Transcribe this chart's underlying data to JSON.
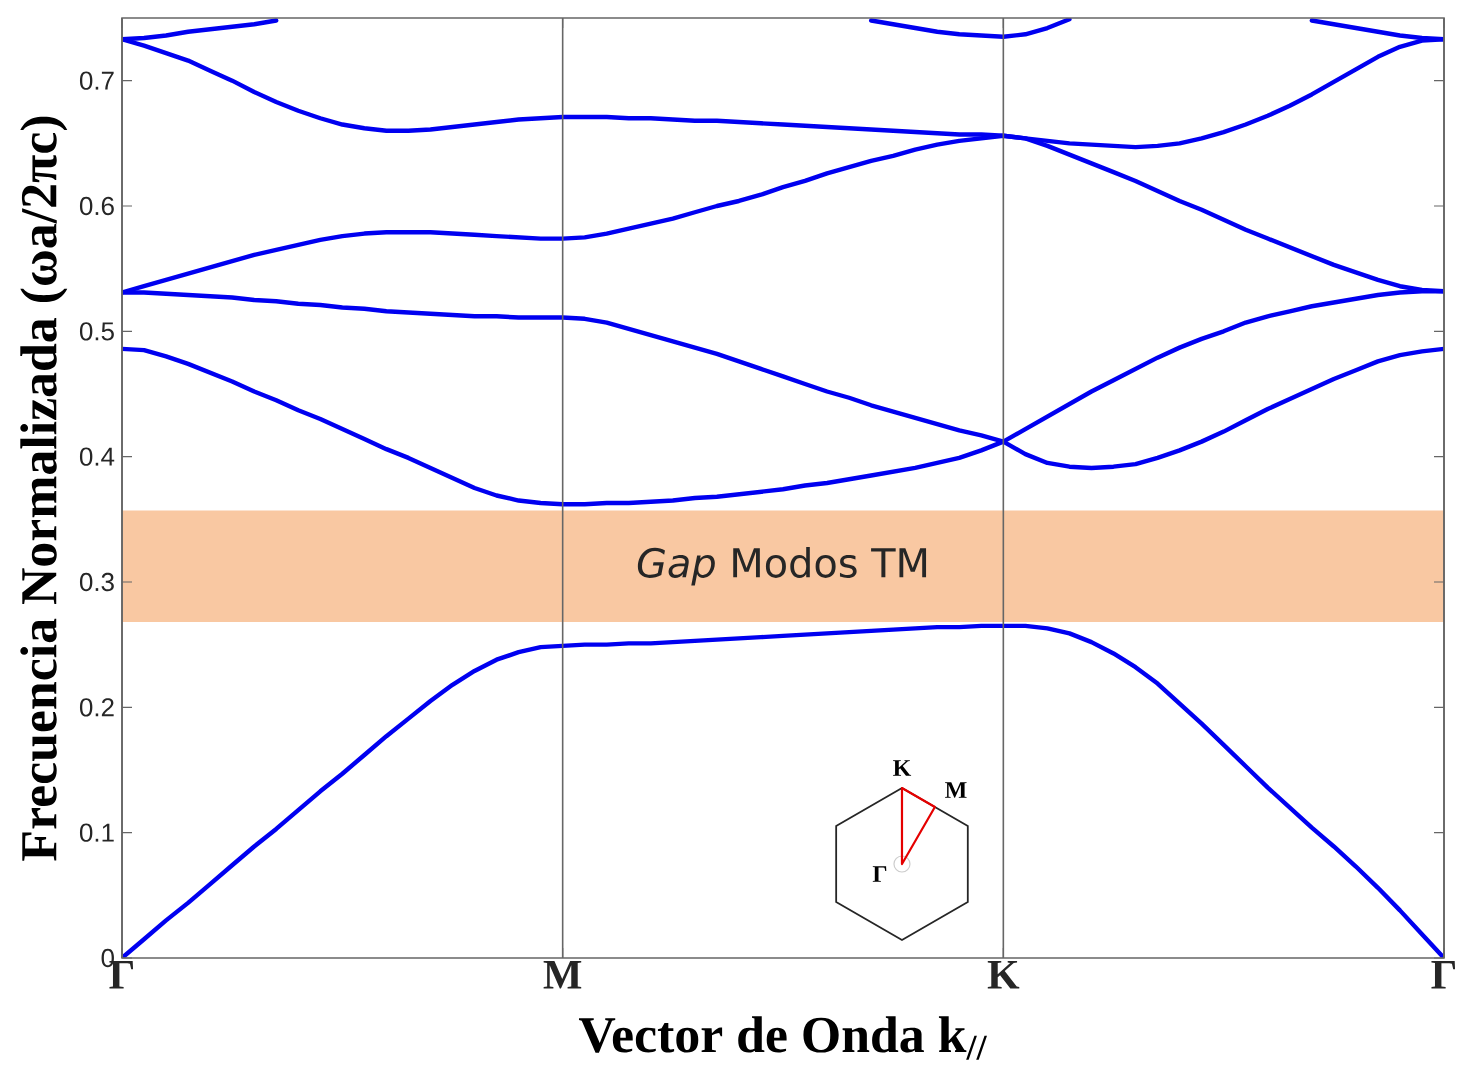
{
  "chart_data": {
    "type": "line",
    "xlabel": "Vector de Onda k$_{//}$",
    "ylabel": "Frecuencia Normalizada (ωa/2πc)",
    "categories": [
      "Γ",
      null,
      null,
      null,
      null,
      null,
      null,
      null,
      null,
      null,
      null,
      null,
      null,
      null,
      null,
      null,
      null,
      null,
      null,
      null,
      "M",
      null,
      null,
      null,
      null,
      null,
      null,
      null,
      null,
      null,
      null,
      null,
      null,
      null,
      null,
      null,
      null,
      null,
      null,
      null,
      "K",
      null,
      null,
      null,
      null,
      null,
      null,
      null,
      null,
      null,
      null,
      null,
      null,
      null,
      null,
      null,
      null,
      null,
      null,
      null,
      "Γ"
    ],
    "ylim": [
      0,
      0.75
    ],
    "yticks": [
      0,
      0.1,
      0.2,
      0.3,
      0.4,
      0.5,
      0.6,
      0.7
    ],
    "grid": "x",
    "bands": [
      {
        "axis": "y",
        "from": 0.268,
        "to": 0.357,
        "label": "*Gap* Modos TM",
        "color": "#f9c8a2"
      }
    ],
    "annotations": [
      "K",
      "M",
      "Γ"
    ],
    "series": [
      {
        "color": "#0000f0",
        "values": [
          0,
          0.015,
          0.03,
          0.044,
          0.059,
          0.074,
          0.089,
          0.103,
          0.118,
          0.133,
          0.147,
          0.162,
          0.177,
          0.191,
          0.205,
          0.218,
          0.229,
          0.238,
          0.244,
          0.248,
          0.249,
          0.25,
          0.25,
          0.251,
          0.251,
          0.252,
          0.253,
          0.254,
          0.255,
          0.256,
          0.257,
          0.258,
          0.259,
          0.26,
          0.261,
          0.262,
          0.263,
          0.264,
          0.264,
          0.265,
          0.265,
          0.265,
          0.263,
          0.259,
          0.252,
          0.243,
          0.232,
          0.219,
          0.203,
          0.187,
          0.17,
          0.153,
          0.136,
          0.12,
          0.104,
          0.089,
          0.073,
          0.056,
          0.038,
          0.019,
          0
        ]
      },
      {
        "color": "#0000f0",
        "values": [
          0.486,
          0.485,
          0.48,
          0.474,
          0.467,
          0.46,
          0.452,
          0.445,
          0.437,
          0.43,
          0.422,
          0.414,
          0.406,
          0.399,
          0.391,
          0.383,
          0.375,
          0.369,
          0.365,
          0.363,
          0.362,
          0.362,
          0.363,
          0.363,
          0.364,
          0.365,
          0.367,
          0.368,
          0.37,
          0.372,
          0.374,
          0.377,
          0.379,
          0.382,
          0.385,
          0.388,
          0.391,
          0.395,
          0.399,
          0.405,
          0.412,
          0.422,
          0.432,
          0.442,
          0.452,
          0.461,
          0.47,
          0.479,
          0.487,
          0.494,
          0.5,
          0.507,
          0.512,
          0.516,
          0.52,
          0.523,
          0.526,
          0.529,
          0.531,
          0.532,
          0.532
        ]
      },
      {
        "color": "#0000f0",
        "values": [
          0.531,
          0.531,
          0.53,
          0.529,
          0.528,
          0.527,
          0.525,
          0.524,
          0.522,
          0.521,
          0.519,
          0.518,
          0.516,
          0.515,
          0.514,
          0.513,
          0.512,
          0.512,
          0.511,
          0.511,
          0.511,
          0.51,
          0.507,
          0.502,
          0.497,
          0.492,
          0.487,
          0.482,
          0.476,
          0.47,
          0.464,
          0.458,
          0.452,
          0.447,
          0.441,
          0.436,
          0.431,
          0.426,
          0.421,
          0.417,
          0.412,
          0.402,
          0.395,
          0.392,
          0.391,
          0.392,
          0.394,
          0.399,
          0.405,
          0.412,
          0.42,
          0.429,
          0.438,
          0.446,
          0.454,
          0.462,
          0.469,
          0.476,
          0.481,
          0.484,
          0.486
        ]
      },
      {
        "color": "#0000f0",
        "values": [
          0.531,
          0.536,
          0.541,
          0.546,
          0.551,
          0.556,
          0.561,
          0.565,
          0.569,
          0.573,
          0.576,
          0.578,
          0.579,
          0.579,
          0.579,
          0.578,
          0.577,
          0.576,
          0.575,
          0.574,
          0.574,
          0.575,
          0.578,
          0.582,
          0.586,
          0.59,
          0.595,
          0.6,
          0.604,
          0.609,
          0.615,
          0.62,
          0.626,
          0.631,
          0.636,
          0.64,
          0.645,
          0.649,
          0.652,
          0.654,
          0.656,
          0.654,
          0.648,
          0.641,
          0.634,
          0.627,
          0.62,
          0.612,
          0.604,
          0.597,
          0.589,
          0.581,
          0.574,
          0.567,
          0.56,
          0.553,
          0.547,
          0.541,
          0.536,
          0.533,
          0.532
        ]
      },
      {
        "color": "#0000f0",
        "values": [
          0.733,
          0.728,
          0.722,
          0.716,
          0.708,
          0.7,
          0.691,
          0.683,
          0.676,
          0.67,
          0.665,
          0.662,
          0.66,
          0.66,
          0.661,
          0.663,
          0.665,
          0.667,
          0.669,
          0.67,
          0.671,
          0.671,
          0.671,
          0.67,
          0.67,
          0.669,
          0.668,
          0.668,
          0.667,
          0.666,
          0.665,
          0.664,
          0.663,
          0.662,
          0.661,
          0.66,
          0.659,
          0.658,
          0.657,
          0.657,
          0.656,
          0.654,
          0.652,
          0.65,
          0.649,
          0.648,
          0.647,
          0.648,
          0.65,
          0.654,
          0.659,
          0.665,
          0.672,
          0.68,
          0.689,
          0.699,
          0.709,
          0.719,
          0.727,
          0.732,
          0.733
        ]
      },
      {
        "color": "#0000f0",
        "values": [
          0.733,
          0.734,
          0.736,
          0.739,
          0.741,
          0.743,
          0.745,
          0.748,
          null,
          null,
          null,
          null,
          null,
          null,
          null,
          null,
          null,
          null,
          null,
          null,
          null,
          null,
          null,
          null,
          null,
          null,
          null,
          null,
          null,
          null,
          null,
          null,
          null,
          null,
          null,
          null,
          null,
          null,
          null,
          null,
          null,
          null,
          null,
          null,
          null,
          null,
          null,
          null,
          null,
          null,
          null,
          null,
          null,
          null,
          null,
          null,
          null,
          null,
          null,
          null,
          null
        ]
      },
      {
        "color": "#0000f0",
        "values": [
          null,
          null,
          null,
          null,
          null,
          null,
          null,
          null,
          null,
          null,
          null,
          null,
          null,
          null,
          null,
          null,
          null,
          null,
          null,
          null,
          null,
          null,
          null,
          null,
          null,
          null,
          null,
          null,
          null,
          null,
          null,
          null,
          null,
          null,
          0.748,
          0.745,
          0.742,
          0.739,
          0.737,
          0.736,
          0.735,
          0.737,
          0.742,
          0.749,
          null,
          null,
          null,
          null,
          null,
          null,
          null,
          null,
          null,
          null,
          null,
          null,
          null,
          null,
          null,
          null,
          null
        ]
      },
      {
        "color": "#0000f0",
        "values": [
          null,
          null,
          null,
          null,
          null,
          null,
          null,
          null,
          null,
          null,
          null,
          null,
          null,
          null,
          null,
          null,
          null,
          null,
          null,
          null,
          null,
          null,
          null,
          null,
          null,
          null,
          null,
          null,
          null,
          null,
          null,
          null,
          null,
          null,
          null,
          null,
          null,
          null,
          null,
          null,
          null,
          null,
          null,
          null,
          null,
          null,
          null,
          null,
          null,
          null,
          null,
          null,
          null,
          null,
          0.748,
          0.745,
          0.742,
          0.739,
          0.736,
          0.734,
          0.733
        ]
      }
    ]
  }
}
